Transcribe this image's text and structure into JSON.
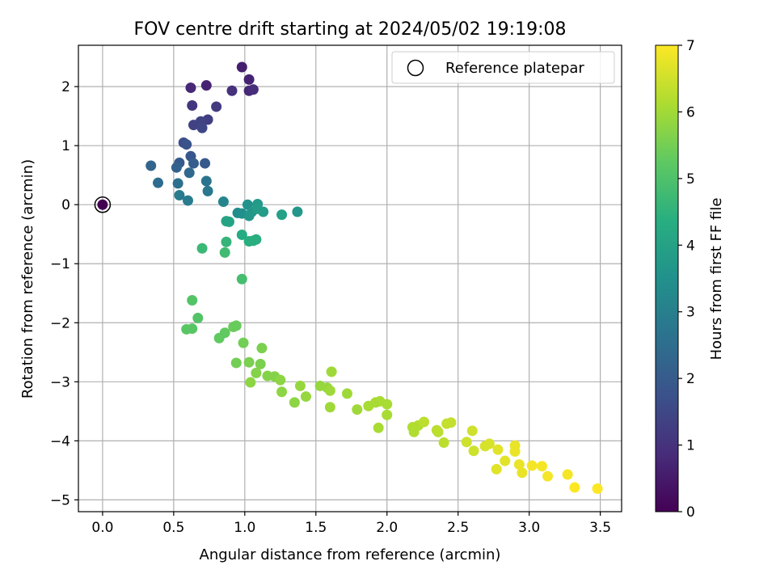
{
  "chart_data": {
    "type": "scatter",
    "title": "FOV centre drift starting at 2024/05/02 19:19:08",
    "xlabel": "Angular distance from reference (arcmin)",
    "ylabel": "Rotation from reference (arcmin)",
    "xlim": [
      -0.17,
      3.65
    ],
    "ylim": [
      -5.2,
      2.7
    ],
    "xticks": [
      0.0,
      0.5,
      1.0,
      1.5,
      2.0,
      2.5,
      3.0,
      3.5
    ],
    "xtick_labels": [
      "0.0",
      "0.5",
      "1.0",
      "1.5",
      "2.0",
      "2.5",
      "3.0",
      "3.5"
    ],
    "yticks": [
      2,
      1,
      0,
      -1,
      -2,
      -3,
      -4,
      -5
    ],
    "ytick_labels": [
      "2",
      "1",
      "0",
      "−1",
      "−2",
      "−3",
      "−4",
      "−5"
    ],
    "grid": true,
    "legend": {
      "placement": "top-right",
      "entries": [
        {
          "label": "Reference platepar",
          "marker": "open-circle"
        }
      ]
    },
    "colorbar": {
      "label": "Hours from first FF file",
      "min": 0,
      "max": 7,
      "ticks": [
        0,
        1,
        2,
        3,
        4,
        5,
        6,
        7
      ],
      "tick_labels": [
        "0",
        "1",
        "2",
        "3",
        "4",
        "5",
        "6",
        "7"
      ],
      "colormap": "viridis"
    },
    "reference_point": {
      "x": 0.0,
      "y": 0.0,
      "hours": 0.0
    },
    "points": [
      {
        "x": 0.62,
        "y": 1.98,
        "h": 0.8
      },
      {
        "x": 0.73,
        "y": 2.02,
        "h": 0.7
      },
      {
        "x": 0.98,
        "y": 2.33,
        "h": 0.6
      },
      {
        "x": 1.03,
        "y": 2.12,
        "h": 0.7
      },
      {
        "x": 1.03,
        "y": 1.93,
        "h": 0.8
      },
      {
        "x": 1.06,
        "y": 1.95,
        "h": 0.9
      },
      {
        "x": 0.91,
        "y": 1.93,
        "h": 1.0
      },
      {
        "x": 0.63,
        "y": 1.68,
        "h": 1.1
      },
      {
        "x": 0.8,
        "y": 1.66,
        "h": 1.2
      },
      {
        "x": 0.74,
        "y": 1.44,
        "h": 1.3
      },
      {
        "x": 0.69,
        "y": 1.41,
        "h": 1.4
      },
      {
        "x": 0.64,
        "y": 1.35,
        "h": 1.4
      },
      {
        "x": 0.7,
        "y": 1.3,
        "h": 1.5
      },
      {
        "x": 0.57,
        "y": 1.05,
        "h": 1.7
      },
      {
        "x": 0.59,
        "y": 1.02,
        "h": 1.8
      },
      {
        "x": 0.62,
        "y": 0.82,
        "h": 1.9
      },
      {
        "x": 0.72,
        "y": 0.7,
        "h": 2.0
      },
      {
        "x": 0.54,
        "y": 0.71,
        "h": 2.0
      },
      {
        "x": 0.64,
        "y": 0.7,
        "h": 2.1
      },
      {
        "x": 0.52,
        "y": 0.63,
        "h": 2.2
      },
      {
        "x": 0.34,
        "y": 0.66,
        "h": 2.3
      },
      {
        "x": 0.61,
        "y": 0.54,
        "h": 2.4
      },
      {
        "x": 0.39,
        "y": 0.37,
        "h": 2.5
      },
      {
        "x": 0.53,
        "y": 0.36,
        "h": 2.6
      },
      {
        "x": 0.73,
        "y": 0.4,
        "h": 2.7
      },
      {
        "x": 0.74,
        "y": 0.23,
        "h": 2.8
      },
      {
        "x": 0.54,
        "y": 0.16,
        "h": 2.9
      },
      {
        "x": 0.6,
        "y": 0.07,
        "h": 2.9
      },
      {
        "x": 0.85,
        "y": 0.05,
        "h": 3.2
      },
      {
        "x": 0.95,
        "y": -0.14,
        "h": 3.4
      },
      {
        "x": 0.98,
        "y": -0.15,
        "h": 3.5
      },
      {
        "x": 1.02,
        "y": 0.0,
        "h": 3.6
      },
      {
        "x": 1.05,
        "y": -0.12,
        "h": 3.7
      },
      {
        "x": 1.03,
        "y": -0.19,
        "h": 3.7
      },
      {
        "x": 1.09,
        "y": 0.01,
        "h": 3.8
      },
      {
        "x": 1.09,
        "y": -0.07,
        "h": 3.9
      },
      {
        "x": 1.13,
        "y": -0.12,
        "h": 3.9
      },
      {
        "x": 1.26,
        "y": -0.17,
        "h": 4.0
      },
      {
        "x": 1.37,
        "y": -0.12,
        "h": 3.7
      },
      {
        "x": 0.87,
        "y": -0.28,
        "h": 4.1
      },
      {
        "x": 0.89,
        "y": -0.29,
        "h": 4.1
      },
      {
        "x": 0.98,
        "y": -0.51,
        "h": 4.3
      },
      {
        "x": 1.03,
        "y": -0.62,
        "h": 4.4
      },
      {
        "x": 1.06,
        "y": -0.61,
        "h": 4.4
      },
      {
        "x": 1.08,
        "y": -0.59,
        "h": 4.4
      },
      {
        "x": 0.87,
        "y": -0.63,
        "h": 4.6
      },
      {
        "x": 0.7,
        "y": -0.74,
        "h": 4.7
      },
      {
        "x": 0.86,
        "y": -0.81,
        "h": 4.8
      },
      {
        "x": 0.98,
        "y": -1.26,
        "h": 4.9
      },
      {
        "x": 0.63,
        "y": -1.62,
        "h": 5.1
      },
      {
        "x": 0.67,
        "y": -1.92,
        "h": 5.1
      },
      {
        "x": 0.59,
        "y": -2.11,
        "h": 5.2
      },
      {
        "x": 0.63,
        "y": -2.1,
        "h": 5.2
      },
      {
        "x": 0.82,
        "y": -2.26,
        "h": 5.3
      },
      {
        "x": 0.86,
        "y": -2.17,
        "h": 5.3
      },
      {
        "x": 0.92,
        "y": -2.07,
        "h": 5.4
      },
      {
        "x": 0.94,
        "y": -2.05,
        "h": 5.4
      },
      {
        "x": 0.99,
        "y": -2.34,
        "h": 5.5
      },
      {
        "x": 0.94,
        "y": -2.68,
        "h": 5.5
      },
      {
        "x": 1.03,
        "y": -2.67,
        "h": 5.6
      },
      {
        "x": 1.12,
        "y": -2.43,
        "h": 5.6
      },
      {
        "x": 1.11,
        "y": -2.7,
        "h": 5.6
      },
      {
        "x": 1.08,
        "y": -2.85,
        "h": 5.7
      },
      {
        "x": 1.16,
        "y": -2.9,
        "h": 5.7
      },
      {
        "x": 1.21,
        "y": -2.91,
        "h": 5.7
      },
      {
        "x": 1.04,
        "y": -3.01,
        "h": 5.8
      },
      {
        "x": 1.25,
        "y": -2.97,
        "h": 5.8
      },
      {
        "x": 1.26,
        "y": -3.17,
        "h": 5.8
      },
      {
        "x": 1.35,
        "y": -3.35,
        "h": 5.8
      },
      {
        "x": 1.39,
        "y": -3.07,
        "h": 5.9
      },
      {
        "x": 1.43,
        "y": -3.25,
        "h": 5.9
      },
      {
        "x": 1.53,
        "y": -3.07,
        "h": 5.9
      },
      {
        "x": 1.58,
        "y": -3.1,
        "h": 5.9
      },
      {
        "x": 1.6,
        "y": -3.15,
        "h": 6.0
      },
      {
        "x": 1.61,
        "y": -2.83,
        "h": 6.0
      },
      {
        "x": 1.6,
        "y": -3.43,
        "h": 6.0
      },
      {
        "x": 1.72,
        "y": -3.2,
        "h": 6.0
      },
      {
        "x": 1.79,
        "y": -3.47,
        "h": 6.0
      },
      {
        "x": 1.87,
        "y": -3.41,
        "h": 6.1
      },
      {
        "x": 1.92,
        "y": -3.35,
        "h": 6.1
      },
      {
        "x": 1.95,
        "y": -3.33,
        "h": 6.1
      },
      {
        "x": 1.94,
        "y": -3.78,
        "h": 6.1
      },
      {
        "x": 2.0,
        "y": -3.38,
        "h": 6.1
      },
      {
        "x": 2.0,
        "y": -3.56,
        "h": 6.1
      },
      {
        "x": 2.18,
        "y": -3.77,
        "h": 6.2
      },
      {
        "x": 2.19,
        "y": -3.85,
        "h": 6.2
      },
      {
        "x": 2.22,
        "y": -3.74,
        "h": 6.2
      },
      {
        "x": 2.26,
        "y": -3.68,
        "h": 6.3
      },
      {
        "x": 2.35,
        "y": -3.82,
        "h": 6.3
      },
      {
        "x": 2.36,
        "y": -3.85,
        "h": 6.3
      },
      {
        "x": 2.4,
        "y": -4.03,
        "h": 6.3
      },
      {
        "x": 2.42,
        "y": -3.71,
        "h": 6.4
      },
      {
        "x": 2.45,
        "y": -3.69,
        "h": 6.4
      },
      {
        "x": 2.56,
        "y": -4.02,
        "h": 6.5
      },
      {
        "x": 2.6,
        "y": -3.83,
        "h": 6.5
      },
      {
        "x": 2.61,
        "y": -4.17,
        "h": 6.5
      },
      {
        "x": 2.69,
        "y": -4.09,
        "h": 6.6
      },
      {
        "x": 2.72,
        "y": -4.05,
        "h": 6.6
      },
      {
        "x": 2.77,
        "y": -4.48,
        "h": 6.7
      },
      {
        "x": 2.78,
        "y": -4.15,
        "h": 6.7
      },
      {
        "x": 2.83,
        "y": -4.34,
        "h": 6.7
      },
      {
        "x": 2.9,
        "y": -4.08,
        "h": 6.8
      },
      {
        "x": 2.9,
        "y": -4.18,
        "h": 6.8
      },
      {
        "x": 2.93,
        "y": -4.4,
        "h": 6.8
      },
      {
        "x": 2.95,
        "y": -4.54,
        "h": 6.8
      },
      {
        "x": 3.02,
        "y": -4.42,
        "h": 6.9
      },
      {
        "x": 3.09,
        "y": -4.43,
        "h": 6.9
      },
      {
        "x": 3.13,
        "y": -4.6,
        "h": 6.9
      },
      {
        "x": 3.27,
        "y": -4.57,
        "h": 6.9
      },
      {
        "x": 3.32,
        "y": -4.79,
        "h": 7.0
      },
      {
        "x": 3.48,
        "y": -4.81,
        "h": 7.0
      }
    ]
  }
}
